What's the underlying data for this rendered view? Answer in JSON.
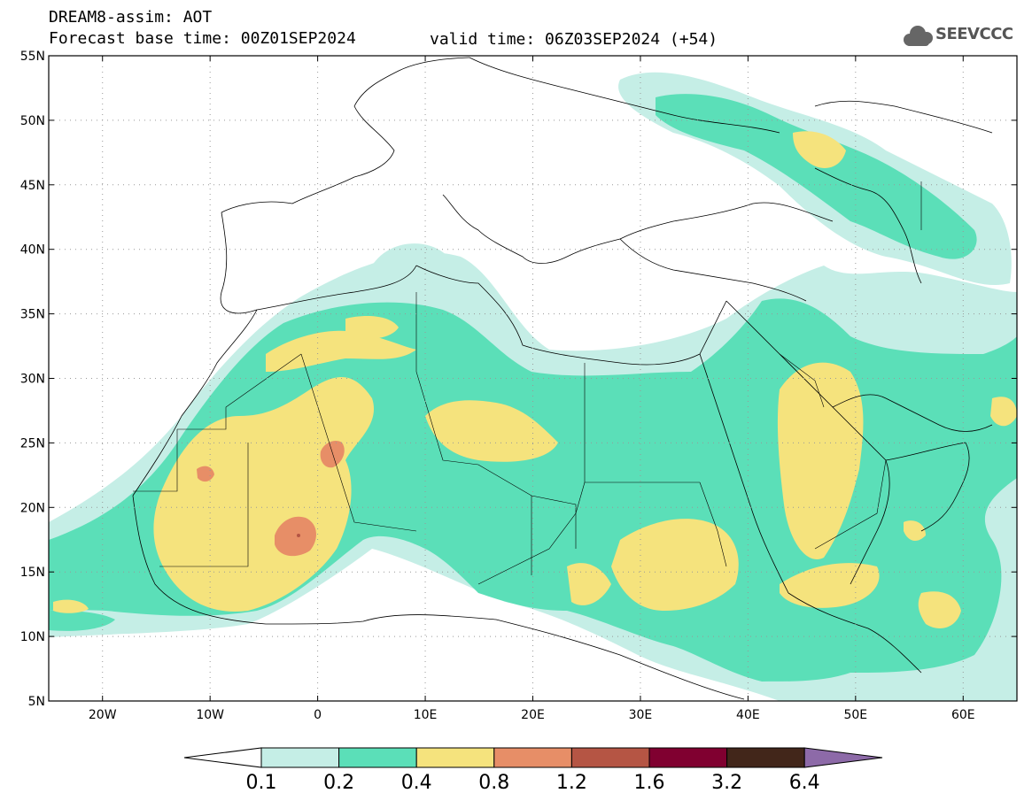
{
  "header": {
    "title_line1": "DREAM8-assim: AOT",
    "title_line2": "Forecast base time: 00Z01SEP2024",
    "valid_time": "valid time: 06Z03SEP2024 (+54)",
    "logo_text": "SEEVCCC"
  },
  "map": {
    "lat_labels": [
      "55N",
      "50N",
      "45N",
      "40N",
      "35N",
      "30N",
      "25N",
      "20N",
      "15N",
      "10N",
      "5N"
    ],
    "lon_labels": [
      "20W",
      "10W",
      "0",
      "10E",
      "20E",
      "30E",
      "40E",
      "50E",
      "60E"
    ],
    "lon_range": [
      -25,
      65
    ],
    "lat_range": [
      5,
      55
    ],
    "gridlines": "dotted"
  },
  "colorbar": {
    "labels": [
      "0.1",
      "0.2",
      "0.4",
      "0.8",
      "1.2",
      "1.6",
      "3.2",
      "6.4"
    ],
    "colors": [
      "#ffffff",
      "#c5eee6",
      "#5bdfb8",
      "#f5e37d",
      "#e78e67",
      "#b55544",
      "#800030",
      "#42261a",
      "#8d6aa8"
    ]
  }
}
